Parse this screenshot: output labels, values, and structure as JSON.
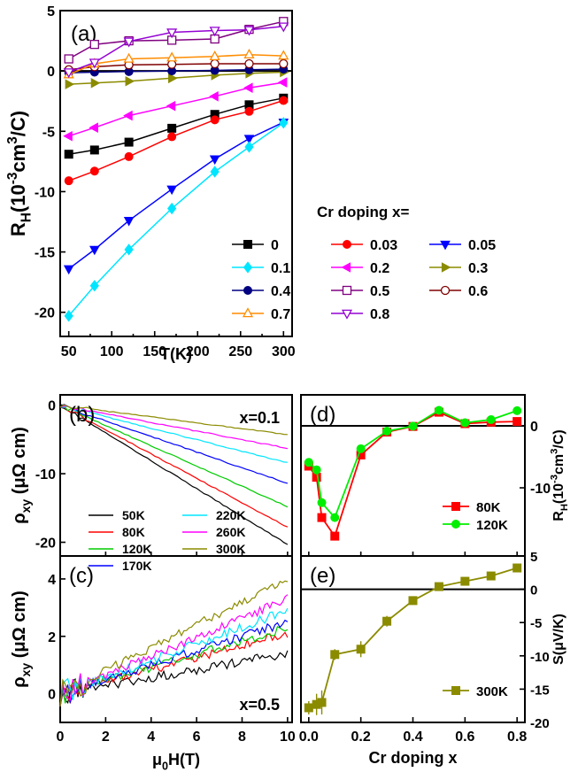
{
  "chart_data": [
    {
      "panel": "(a)",
      "type": "line",
      "ylabel": "R_H(10^-3 cm^3/C)",
      "xlabel": "T(K)",
      "xlim": [
        40,
        310
      ],
      "ylim": [
        -22,
        5
      ],
      "xticks": [
        50,
        100,
        150,
        200,
        250,
        300
      ],
      "yticks": [
        5,
        0,
        -5,
        -10,
        -15,
        -20
      ],
      "legend_title": "Cr doping x=",
      "legend_position": "lower-right",
      "zero_line": true,
      "x": [
        50,
        80,
        120,
        170,
        220,
        260,
        300
      ],
      "series": [
        {
          "name": "0",
          "color": "#000000",
          "marker": "square",
          "filled": true,
          "values": [
            -6.9,
            -6.55,
            -5.9,
            -4.75,
            -3.6,
            -2.8,
            -2.25
          ]
        },
        {
          "name": "0.03",
          "color": "#ff0000",
          "marker": "circle",
          "filled": true,
          "values": [
            -9.1,
            -8.3,
            -7.1,
            -5.45,
            -4.05,
            -3.35,
            -2.45
          ]
        },
        {
          "name": "0.05",
          "color": "#0000ff",
          "marker": "triangle-down",
          "filled": true,
          "values": [
            -16.4,
            -14.8,
            -12.4,
            -9.8,
            -7.3,
            -5.6,
            -4.25
          ]
        },
        {
          "name": "0.1",
          "color": "#00e5ff",
          "marker": "diamond",
          "filled": true,
          "values": [
            -20.3,
            -17.8,
            -14.8,
            -11.4,
            -8.35,
            -6.3,
            -4.3
          ]
        },
        {
          "name": "0.2",
          "color": "#ff00ff",
          "marker": "triangle-left",
          "filled": true,
          "values": [
            -5.4,
            -4.7,
            -3.7,
            -2.9,
            -2.1,
            -1.4,
            -0.95
          ]
        },
        {
          "name": "0.3",
          "color": "#8b8b00",
          "marker": "triangle-right",
          "filled": true,
          "values": [
            -1.1,
            -1.0,
            -0.85,
            -0.6,
            -0.35,
            -0.2,
            -0.1
          ]
        },
        {
          "name": "0.4",
          "color": "#000080",
          "marker": "circle",
          "filled": true,
          "values": [
            -0.15,
            -0.1,
            -0.05,
            0.0,
            0.05,
            0.1,
            0.15
          ]
        },
        {
          "name": "0.5",
          "color": "#800080",
          "marker": "square",
          "filled": false,
          "values": [
            1.0,
            2.2,
            2.5,
            2.55,
            2.65,
            3.45,
            4.1
          ]
        },
        {
          "name": "0.6",
          "color": "#800000",
          "marker": "circle",
          "filled": false,
          "values": [
            0.1,
            0.35,
            0.5,
            0.55,
            0.6,
            0.6,
            0.6
          ]
        },
        {
          "name": "0.7",
          "color": "#ff8c00",
          "marker": "triangle-up",
          "filled": false,
          "values": [
            -0.3,
            0.6,
            1.0,
            1.1,
            1.2,
            1.35,
            1.25
          ]
        },
        {
          "name": "0.8",
          "color": "#9400d3",
          "marker": "triangle-down",
          "filled": false,
          "values": [
            -0.1,
            0.7,
            2.45,
            3.2,
            3.35,
            3.4,
            3.7
          ]
        }
      ]
    },
    {
      "panel": "(b)",
      "type": "line",
      "annotation": "x=0.1",
      "ylabel": "ρ_xy (μΩ cm)",
      "xlim": [
        0,
        10.2
      ],
      "ylim": [
        -22,
        1.5
      ],
      "yticks": [
        0,
        -10,
        -20
      ],
      "series": [
        {
          "name": "50K",
          "color": "#000000",
          "x": [
            0,
            10
          ],
          "values": [
            0,
            -20.3
          ]
        },
        {
          "name": "80K",
          "color": "#ff0000",
          "x": [
            0,
            10
          ],
          "values": [
            0,
            -17.8
          ]
        },
        {
          "name": "120K",
          "color": "#00cc00",
          "x": [
            0,
            10
          ],
          "values": [
            0,
            -14.8
          ]
        },
        {
          "name": "170K",
          "color": "#0000ff",
          "x": [
            0,
            10
          ],
          "values": [
            0,
            -11.4
          ]
        },
        {
          "name": "220K",
          "color": "#00e5ff",
          "x": [
            0,
            10
          ],
          "values": [
            0,
            -8.4
          ]
        },
        {
          "name": "260K",
          "color": "#ff00ff",
          "x": [
            0,
            10
          ],
          "values": [
            0,
            -6.3
          ]
        },
        {
          "name": "300K",
          "color": "#8b8b00",
          "x": [
            0,
            10
          ],
          "values": [
            0,
            -4.3
          ]
        }
      ]
    },
    {
      "panel": "(c)",
      "type": "line",
      "annotation": "x=0.5",
      "ylabel": "ρ_xy (μΩ cm)",
      "xlabel": "μ0H(T)",
      "xlim": [
        0,
        10.2
      ],
      "ylim": [
        -1,
        4.8
      ],
      "xticks": [
        0,
        2,
        4,
        6,
        8,
        10
      ],
      "yticks": [
        0,
        2,
        4
      ],
      "noisy": true,
      "series": [
        {
          "name": "50K",
          "color": "#000000",
          "x": [
            0,
            10
          ],
          "values": [
            0,
            1.4
          ]
        },
        {
          "name": "80K",
          "color": "#ff0000",
          "x": [
            0,
            10
          ],
          "values": [
            0,
            2.1
          ]
        },
        {
          "name": "120K",
          "color": "#00cc00",
          "x": [
            0,
            10
          ],
          "values": [
            0,
            2.3
          ]
        },
        {
          "name": "170K",
          "color": "#0000ff",
          "x": [
            0,
            10
          ],
          "values": [
            0,
            2.5
          ]
        },
        {
          "name": "220K",
          "color": "#00e5ff",
          "x": [
            0,
            10
          ],
          "values": [
            0,
            2.9
          ]
        },
        {
          "name": "260K",
          "color": "#ff00ff",
          "x": [
            0,
            10
          ],
          "values": [
            0,
            3.3
          ]
        },
        {
          "name": "300K",
          "color": "#8b8b00",
          "x": [
            0,
            10
          ],
          "values": [
            0,
            4.0
          ]
        }
      ]
    },
    {
      "panel": "(d)",
      "type": "line",
      "ylabel": "R_H(10^-3 cm^3/C)",
      "xlim": [
        -0.03,
        0.83
      ],
      "ylim": [
        -21,
        5
      ],
      "yticks": [
        0,
        -10
      ],
      "zero_line": true,
      "x": [
        0,
        0.03,
        0.05,
        0.1,
        0.2,
        0.3,
        0.4,
        0.5,
        0.6,
        0.7,
        0.8
      ],
      "series": [
        {
          "name": "80K",
          "color": "#ff0000",
          "marker": "square",
          "values": [
            -6.5,
            -8.3,
            -14.8,
            -17.8,
            -4.7,
            -1.0,
            -0.1,
            2.2,
            0.35,
            0.6,
            0.7
          ]
        },
        {
          "name": "120K",
          "color": "#00ee00",
          "marker": "circle",
          "values": [
            -5.9,
            -7.1,
            -12.4,
            -14.8,
            -3.7,
            -0.85,
            -0.05,
            2.5,
            0.5,
            1.0,
            2.45
          ]
        }
      ]
    },
    {
      "panel": "(e)",
      "type": "line",
      "ylabel": "S(μV/K)",
      "xlabel": "Cr doping x",
      "xlim": [
        -0.03,
        0.83
      ],
      "ylim": [
        -20,
        5
      ],
      "xticks": [
        0.0,
        0.2,
        0.4,
        0.6,
        0.8
      ],
      "yticks": [
        5,
        0,
        -5,
        -10,
        -15,
        -20
      ],
      "zero_line": true,
      "x": [
        0,
        0.03,
        0.05,
        0.1,
        0.2,
        0.3,
        0.4,
        0.5,
        0.6,
        0.7,
        0.8
      ],
      "series": [
        {
          "name": "300K",
          "color": "#8b8b00",
          "marker": "square",
          "values": [
            -17.8,
            -17.3,
            -17.0,
            -9.8,
            -9.0,
            -4.8,
            -1.7,
            0.4,
            1.2,
            2.0,
            3.2
          ],
          "errors": [
            1.0,
            1.6,
            1.8,
            0.8,
            1.2,
            0.8,
            0.5,
            0.4,
            0.4,
            0.4,
            0.4
          ]
        }
      ]
    }
  ]
}
